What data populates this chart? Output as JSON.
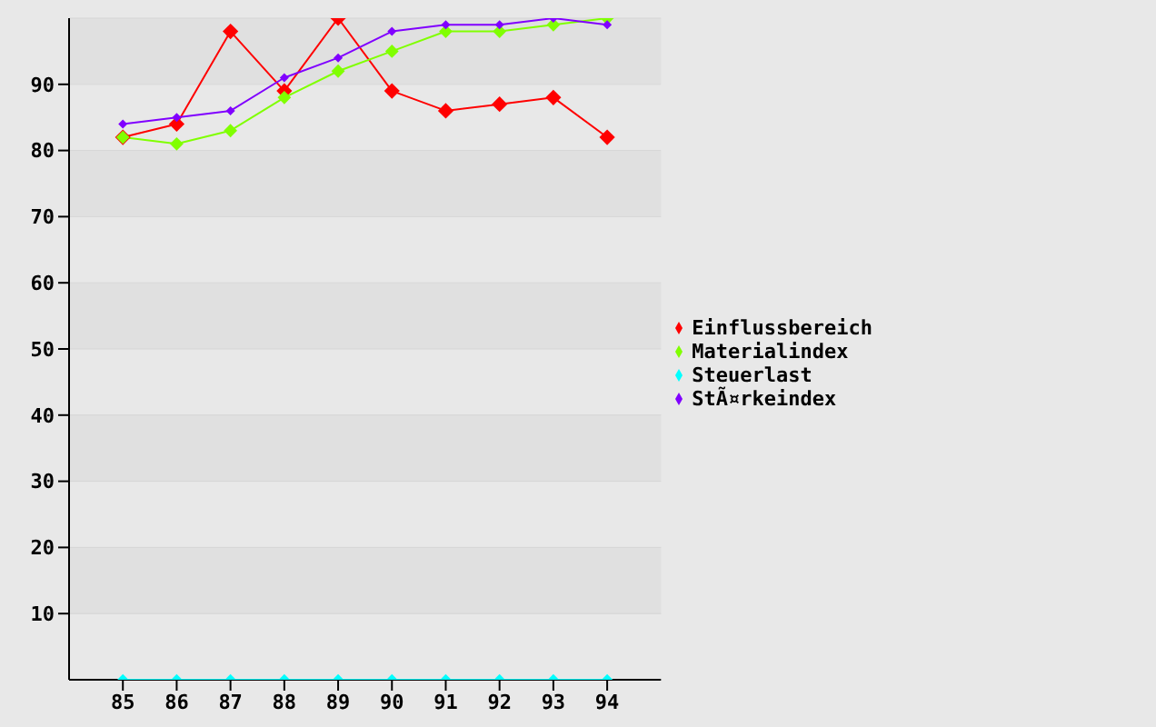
{
  "chart_data": {
    "type": "line",
    "x": [
      85,
      86,
      87,
      88,
      89,
      90,
      91,
      92,
      93,
      94
    ],
    "xlim": [
      84,
      95
    ],
    "xticks": [
      85,
      86,
      87,
      88,
      89,
      90,
      91,
      92,
      93,
      94
    ],
    "ylim": [
      0,
      100
    ],
    "yticks": [
      10,
      20,
      30,
      40,
      50,
      60,
      70,
      80,
      90
    ],
    "grid": "y",
    "legend": "right",
    "marker": "diamond",
    "series": [
      {
        "name": "Einflussbereich",
        "color": "#ff0000",
        "values": [
          82,
          84,
          98,
          89,
          100,
          89,
          86,
          87,
          88,
          82
        ]
      },
      {
        "name": "Materialindex",
        "color": "#80ff00",
        "values": [
          82,
          81,
          83,
          88,
          92,
          95,
          98,
          98,
          99,
          100
        ]
      },
      {
        "name": "Steuerlast",
        "color": "#00ffff",
        "values": [
          0,
          0,
          0,
          0,
          0,
          0,
          0,
          0,
          0,
          0
        ]
      },
      {
        "name": "StÃ¤rkeindex",
        "color": "#8000ff",
        "values": [
          84,
          85,
          86,
          91,
          94,
          98,
          99,
          99,
          100,
          99
        ]
      }
    ]
  }
}
